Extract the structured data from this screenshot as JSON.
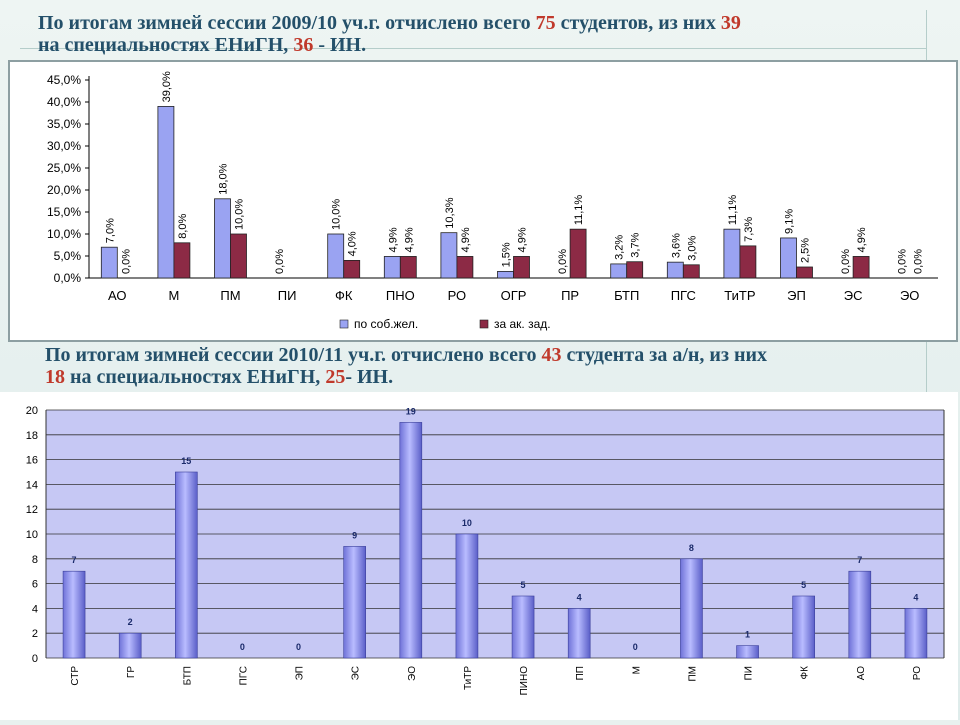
{
  "heading_2009": {
    "p1": "По итогам зимней сессии 2009/10 уч.г. отчислено всего ",
    "n1": "75",
    "p2": " студентов, из них ",
    "n2": "39",
    "p3": "на специальностях ЕНиГН, ",
    "n3": "36",
    "p4": " - ИН."
  },
  "heading_2010": {
    "p1": "По итогам зимней сессии 2010/11 уч.г. отчислено всего ",
    "n1": "43",
    "p2": " студента за а/н, из них",
    "n2": "18",
    "p3": " на специальностях ЕНиГН, ",
    "n3": "25",
    "p4": "- ИН."
  },
  "colors": {
    "series_own": "#9aa3f2",
    "series_debt": "#8c2a45",
    "bar_2010": "#8f92f0",
    "plot_bg_2010": "#c6c8f4",
    "highlight": "#c0392b",
    "heading": "#24506a"
  },
  "chart_data": [
    {
      "type": "bar",
      "categories": [
        "АО",
        "М",
        "ПМ",
        "ПИ",
        "ФК",
        "ПНО",
        "РО",
        "ОГР",
        "ПР",
        "БТП",
        "ПГС",
        "ТиТР",
        "ЭП",
        "ЭС",
        "ЭО"
      ],
      "series": [
        {
          "name": "по соб.жел.",
          "values": [
            7.0,
            39.0,
            18.0,
            0.0,
            10.0,
            4.9,
            10.3,
            1.5,
            0.0,
            3.2,
            3.6,
            11.1,
            9.1,
            0.0,
            0.0
          ],
          "labels": [
            "7,0%",
            "39,0%",
            "18,0%",
            "0,0%",
            "10,0%",
            "4,9%",
            "10,3%",
            "1,5%",
            "0,0%",
            "3,2%",
            "3,6%",
            "11,1%",
            "9,1%",
            "0,0%",
            "0,0%"
          ]
        },
        {
          "name": "за ак. зад.",
          "values": [
            0.0,
            8.0,
            10.0,
            null,
            4.0,
            4.9,
            4.9,
            4.9,
            11.1,
            3.7,
            3.0,
            7.3,
            2.5,
            4.9,
            0.0
          ],
          "labels": [
            "0,0%",
            "8,0%",
            "10,0%",
            "",
            "4,0%",
            "4,9%",
            "4,9%",
            "4,9%",
            "11,1%",
            "3,7%",
            "3,0%",
            "7,3%",
            "2,5%",
            "4,9%",
            "0,0%"
          ]
        }
      ],
      "ylim": [
        0,
        45
      ],
      "yticks": [
        "0,0%",
        "5,0%",
        "10,0%",
        "15,0%",
        "20,0%",
        "25,0%",
        "30,0%",
        "35,0%",
        "40,0%",
        "45,0%"
      ],
      "legend_position": "bottom",
      "grid": false
    },
    {
      "type": "bar",
      "categories": [
        "СТР",
        "ГР",
        "БТП",
        "ПГС",
        "ЭП",
        "ЭС",
        "ЭО",
        "ТиТР",
        "ПИНО",
        "ПП",
        "М",
        "ПМ",
        "ПИ",
        "ФК",
        "АО",
        "РО"
      ],
      "values": [
        7,
        2,
        15,
        0,
        0,
        9,
        19,
        10,
        5,
        4,
        0,
        8,
        1,
        5,
        7,
        4
      ],
      "ylim": [
        0,
        20
      ],
      "yticks": [
        "0",
        "2",
        "4",
        "6",
        "8",
        "10",
        "12",
        "14",
        "16",
        "18",
        "20"
      ],
      "grid": true
    }
  ]
}
